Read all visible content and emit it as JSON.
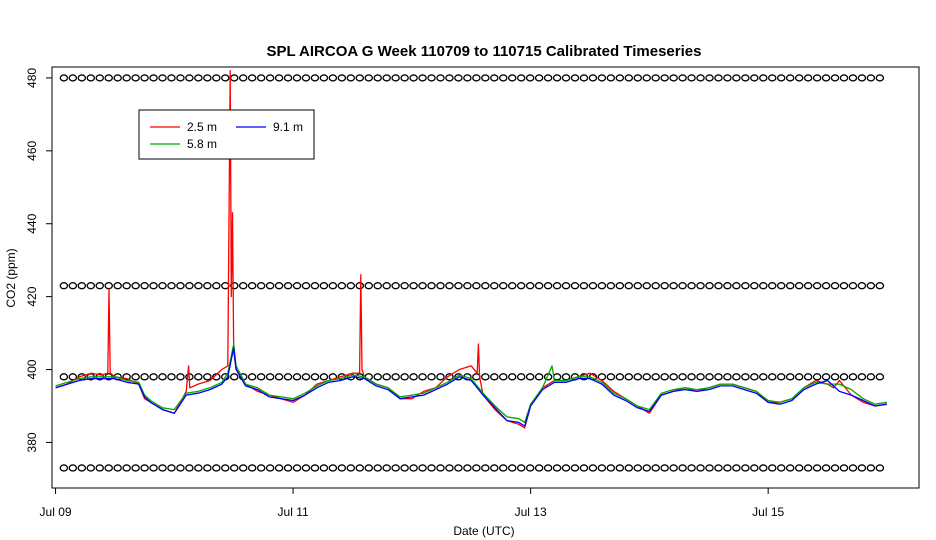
{
  "chart_data": {
    "type": "line",
    "title": "SPL AIRCOA G  Week 110709 to 110715  Calibrated Timeseries",
    "xlabel": "Date (UTC)",
    "ylabel": "CO2 (ppm)",
    "x_unit": "day of July 2011",
    "xlim": [
      8.97,
      16.27
    ],
    "ylim": [
      367.5,
      483.0
    ],
    "x_ticks": [
      9,
      11,
      13,
      15
    ],
    "x_tick_labels": [
      "Jul 09",
      "Jul 11",
      "Jul 13",
      "Jul 15"
    ],
    "y_ticks": [
      380,
      400,
      420,
      440,
      460,
      480
    ],
    "y_tick_labels": [
      "380",
      "400",
      "420",
      "440",
      "460",
      "480"
    ],
    "legend": {
      "position": "top-left",
      "entries": [
        "2.5 m",
        "5.8 m",
        "9.1 m"
      ]
    },
    "grid": false,
    "series": [
      {
        "name": "2.5 m",
        "color": "#ff0000",
        "x": [
          9.0,
          9.1,
          9.2,
          9.3,
          9.38,
          9.44,
          9.45,
          9.46,
          9.5,
          9.6,
          9.7,
          9.75,
          9.8,
          9.9,
          10.0,
          10.1,
          10.12,
          10.13,
          10.2,
          10.3,
          10.4,
          10.45,
          10.47,
          10.48,
          10.49,
          10.5,
          10.52,
          10.6,
          10.7,
          10.8,
          10.9,
          11.0,
          11.1,
          11.2,
          11.3,
          11.4,
          11.5,
          11.56,
          11.57,
          11.58,
          11.6,
          11.7,
          11.8,
          11.9,
          12.0,
          12.1,
          12.2,
          12.3,
          12.4,
          12.5,
          12.55,
          12.56,
          12.57,
          12.6,
          12.7,
          12.8,
          12.9,
          12.95,
          13.0,
          13.1,
          13.2,
          13.3,
          13.4,
          13.5,
          13.6,
          13.7,
          13.8,
          13.9,
          14.0,
          14.1,
          14.2,
          14.3,
          14.4,
          14.5,
          14.6,
          14.7,
          14.8,
          14.9,
          15.0,
          15.1,
          15.2,
          15.3,
          15.4,
          15.5,
          15.55,
          15.6,
          15.7,
          15.8,
          15.9,
          16.0
        ],
        "y": [
          395.0,
          396.0,
          398.0,
          399.0,
          398.5,
          399.0,
          422.0,
          399.0,
          398.0,
          397.5,
          396.0,
          392.0,
          391.0,
          389.0,
          388.0,
          394.0,
          401.0,
          395.0,
          396.0,
          397.0,
          400.0,
          401.0,
          482.0,
          420.0,
          443.0,
          405.0,
          400.0,
          396.0,
          394.0,
          393.0,
          392.0,
          391.0,
          393.0,
          396.0,
          397.0,
          398.0,
          399.0,
          399.0,
          426.0,
          400.0,
          398.0,
          396.0,
          395.0,
          392.0,
          392.0,
          394.0,
          395.0,
          398.0,
          400.0,
          401.0,
          399.0,
          407.0,
          398.0,
          393.0,
          389.0,
          386.0,
          385.0,
          384.0,
          390.0,
          395.0,
          397.0,
          397.0,
          398.0,
          399.0,
          397.0,
          394.0,
          392.0,
          390.0,
          388.0,
          393.0,
          394.0,
          395.0,
          394.0,
          395.0,
          396.0,
          396.0,
          395.0,
          394.0,
          391.0,
          391.0,
          392.0,
          395.0,
          397.0,
          396.0,
          395.0,
          397.0,
          393.0,
          391.0,
          390.0,
          390.5
        ]
      },
      {
        "name": "5.8 m",
        "color": "#00aa00",
        "x": [
          9.0,
          9.1,
          9.2,
          9.3,
          9.4,
          9.5,
          9.6,
          9.7,
          9.75,
          9.8,
          9.9,
          10.0,
          10.1,
          10.2,
          10.3,
          10.4,
          10.45,
          10.5,
          10.52,
          10.6,
          10.7,
          10.8,
          10.9,
          11.0,
          11.1,
          11.2,
          11.3,
          11.4,
          11.5,
          11.6,
          11.7,
          11.8,
          11.9,
          12.0,
          12.1,
          12.2,
          12.3,
          12.4,
          12.5,
          12.6,
          12.7,
          12.8,
          12.9,
          12.95,
          13.0,
          13.1,
          13.18,
          13.2,
          13.3,
          13.4,
          13.5,
          13.6,
          13.7,
          13.8,
          13.9,
          14.0,
          14.1,
          14.2,
          14.3,
          14.4,
          14.5,
          14.6,
          14.7,
          14.8,
          14.9,
          15.0,
          15.1,
          15.2,
          15.3,
          15.4,
          15.5,
          15.6,
          15.7,
          15.8,
          15.9,
          16.0
        ],
        "y": [
          395.5,
          396.5,
          397.5,
          398.0,
          398.0,
          398.0,
          397.0,
          396.5,
          393.0,
          391.5,
          389.5,
          389.0,
          393.5,
          394.0,
          395.0,
          396.5,
          399.0,
          407.0,
          401.0,
          396.0,
          395.0,
          393.0,
          392.5,
          392.0,
          393.5,
          395.5,
          397.0,
          397.5,
          398.5,
          398.0,
          396.0,
          395.0,
          392.5,
          393.0,
          393.5,
          395.0,
          396.5,
          398.5,
          397.5,
          393.5,
          390.0,
          387.0,
          386.5,
          385.5,
          390.5,
          395.0,
          401.0,
          397.0,
          397.0,
          398.0,
          398.0,
          396.5,
          393.5,
          392.0,
          390.0,
          389.0,
          393.5,
          394.5,
          395.0,
          394.5,
          395.0,
          396.0,
          396.0,
          395.0,
          394.0,
          391.5,
          391.0,
          392.0,
          395.0,
          396.5,
          396.0,
          396.0,
          394.5,
          392.0,
          390.5,
          391.0
        ]
      },
      {
        "name": "9.1 m",
        "color": "#0000ff",
        "x": [
          9.0,
          9.1,
          9.2,
          9.3,
          9.4,
          9.5,
          9.6,
          9.7,
          9.75,
          9.8,
          9.9,
          10.0,
          10.1,
          10.2,
          10.3,
          10.4,
          10.45,
          10.5,
          10.52,
          10.6,
          10.7,
          10.8,
          10.9,
          11.0,
          11.1,
          11.2,
          11.3,
          11.4,
          11.5,
          11.6,
          11.7,
          11.8,
          11.9,
          12.0,
          12.1,
          12.2,
          12.3,
          12.4,
          12.5,
          12.6,
          12.7,
          12.8,
          12.9,
          12.95,
          13.0,
          13.1,
          13.2,
          13.3,
          13.4,
          13.5,
          13.6,
          13.7,
          13.8,
          13.9,
          14.0,
          14.1,
          14.2,
          14.3,
          14.4,
          14.5,
          14.6,
          14.7,
          14.8,
          14.9,
          15.0,
          15.1,
          15.2,
          15.3,
          15.4,
          15.5,
          15.6,
          15.7,
          15.8,
          15.9,
          16.0
        ],
        "y": [
          395.0,
          396.0,
          397.0,
          397.5,
          397.5,
          397.5,
          396.5,
          396.0,
          392.5,
          391.0,
          389.0,
          388.0,
          393.0,
          393.5,
          394.5,
          396.0,
          398.0,
          406.0,
          400.0,
          395.5,
          394.5,
          392.5,
          392.0,
          391.5,
          393.0,
          395.0,
          396.5,
          397.0,
          398.0,
          397.5,
          395.5,
          394.5,
          392.0,
          392.5,
          393.0,
          394.5,
          396.0,
          398.0,
          397.0,
          393.0,
          389.5,
          386.0,
          385.5,
          384.5,
          390.0,
          394.5,
          396.5,
          396.5,
          397.5,
          397.5,
          396.0,
          393.0,
          391.5,
          389.5,
          388.5,
          393.0,
          394.0,
          394.5,
          394.0,
          394.5,
          395.5,
          395.5,
          394.5,
          393.5,
          391.0,
          390.5,
          391.5,
          394.5,
          396.0,
          397.0,
          394.0,
          393.0,
          391.5,
          390.0,
          390.5
        ]
      },
      {
        "name": "",
        "type": "scatter",
        "marker": "open-circle",
        "color": "#000000",
        "y_levels": [
          373,
          398,
          423,
          480
        ],
        "x_start": 9.07,
        "x_end": 15.95,
        "x_step": 0.0755
      }
    ]
  }
}
